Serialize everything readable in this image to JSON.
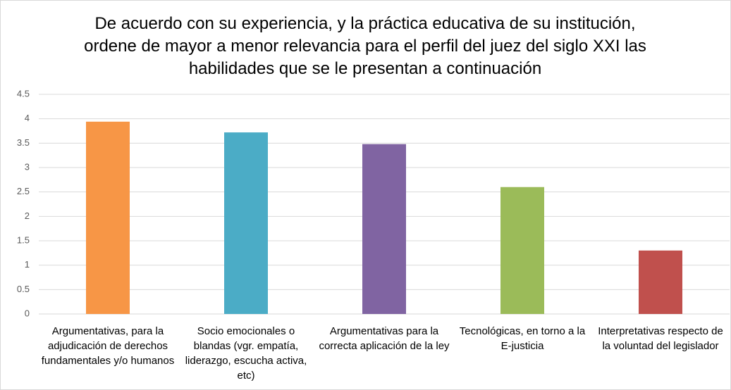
{
  "chart_data": {
    "type": "bar",
    "title": "De acuerdo con su experiencia, y la práctica educativa de su institución, ordene de mayor a menor relevancia para el perfil del juez del siglo XXI las habilidades que se le presentan a continuación",
    "categories": [
      "Argumentativas, para la adjudicación de derechos fundamentales y/o humanos",
      "Socio emocionales o blandas (vgr. empatía, liderazgo, escucha activa, etc)",
      "Argumentativas para la correcta aplicación de la ley",
      "Tecnológicas, en torno a la E-justicia",
      "Interpretativas respecto de la voluntad del legislador"
    ],
    "values": [
      3.94,
      3.72,
      3.48,
      2.6,
      1.3
    ],
    "colors": [
      "#f79646",
      "#4bacc6",
      "#8064a2",
      "#9bbb59",
      "#c0504d"
    ],
    "ylim": [
      0,
      4.5
    ],
    "yticks": [
      0,
      0.5,
      1,
      1.5,
      2,
      2.5,
      3,
      3.5,
      4,
      4.5
    ],
    "grid": true
  }
}
